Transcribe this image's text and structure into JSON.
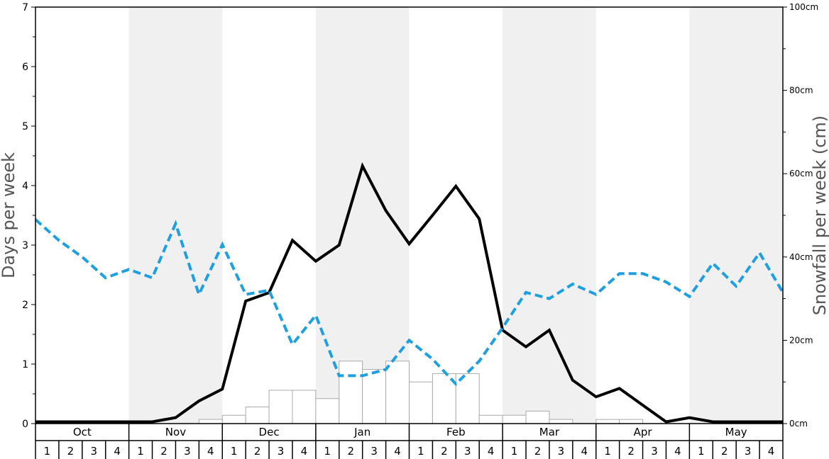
{
  "chart_data": {
    "type": "line",
    "ylabel_left": "Days per week",
    "ylabel_right": "Snowfall per week (cm)",
    "left_ticks": [
      0,
      1,
      2,
      3,
      4,
      5,
      6,
      7
    ],
    "right_ticks": [
      "0cm",
      "20cm",
      "40cm",
      "60cm",
      "80cm",
      "100cm"
    ],
    "ylim_left": [
      0,
      7
    ],
    "ylim_right": [
      0,
      100
    ],
    "months": [
      "Oct",
      "Nov",
      "Dec",
      "Jan",
      "Feb",
      "Mar",
      "Apr",
      "May"
    ],
    "weeks": [
      "1",
      "2",
      "3",
      "4"
    ],
    "shaded_months": [
      "Nov",
      "Jan",
      "Mar",
      "May"
    ],
    "snowfall_bars_cm": [
      0,
      0,
      0,
      0,
      0,
      0,
      0,
      1,
      2,
      4,
      8,
      8,
      6,
      15,
      13,
      15,
      10,
      12,
      12,
      2,
      2,
      3,
      1,
      0,
      1,
      1,
      0,
      0,
      0,
      0,
      0,
      0
    ],
    "series": [
      {
        "values": [
          0.03,
          0.03,
          0.03,
          0.03,
          0.03,
          0.03,
          0.1,
          0.38,
          0.58,
          2.06,
          2.2,
          3.08,
          2.73,
          3.0,
          4.33,
          3.58,
          3.02,
          3.5,
          3.99,
          3.44,
          1.57,
          1.29,
          1.57,
          0.73,
          0.45,
          0.59,
          0.31,
          0.03,
          0.1,
          0.03,
          0.03,
          0.03,
          0.03
        ],
        "color": "#000000",
        "style": "solid"
      },
      {
        "values": [
          49,
          44,
          40,
          35,
          37,
          35,
          48,
          31,
          43,
          31,
          32,
          19,
          26,
          11.5,
          11.5,
          13,
          20,
          15.5,
          9.5,
          15,
          23,
          31.5,
          30,
          33.5,
          31,
          36,
          36,
          34,
          30.5,
          38.5,
          33,
          41,
          31.5
        ],
        "color": "#1e9fe0",
        "style": "dashed"
      }
    ],
    "grid": false,
    "legend": "none"
  }
}
